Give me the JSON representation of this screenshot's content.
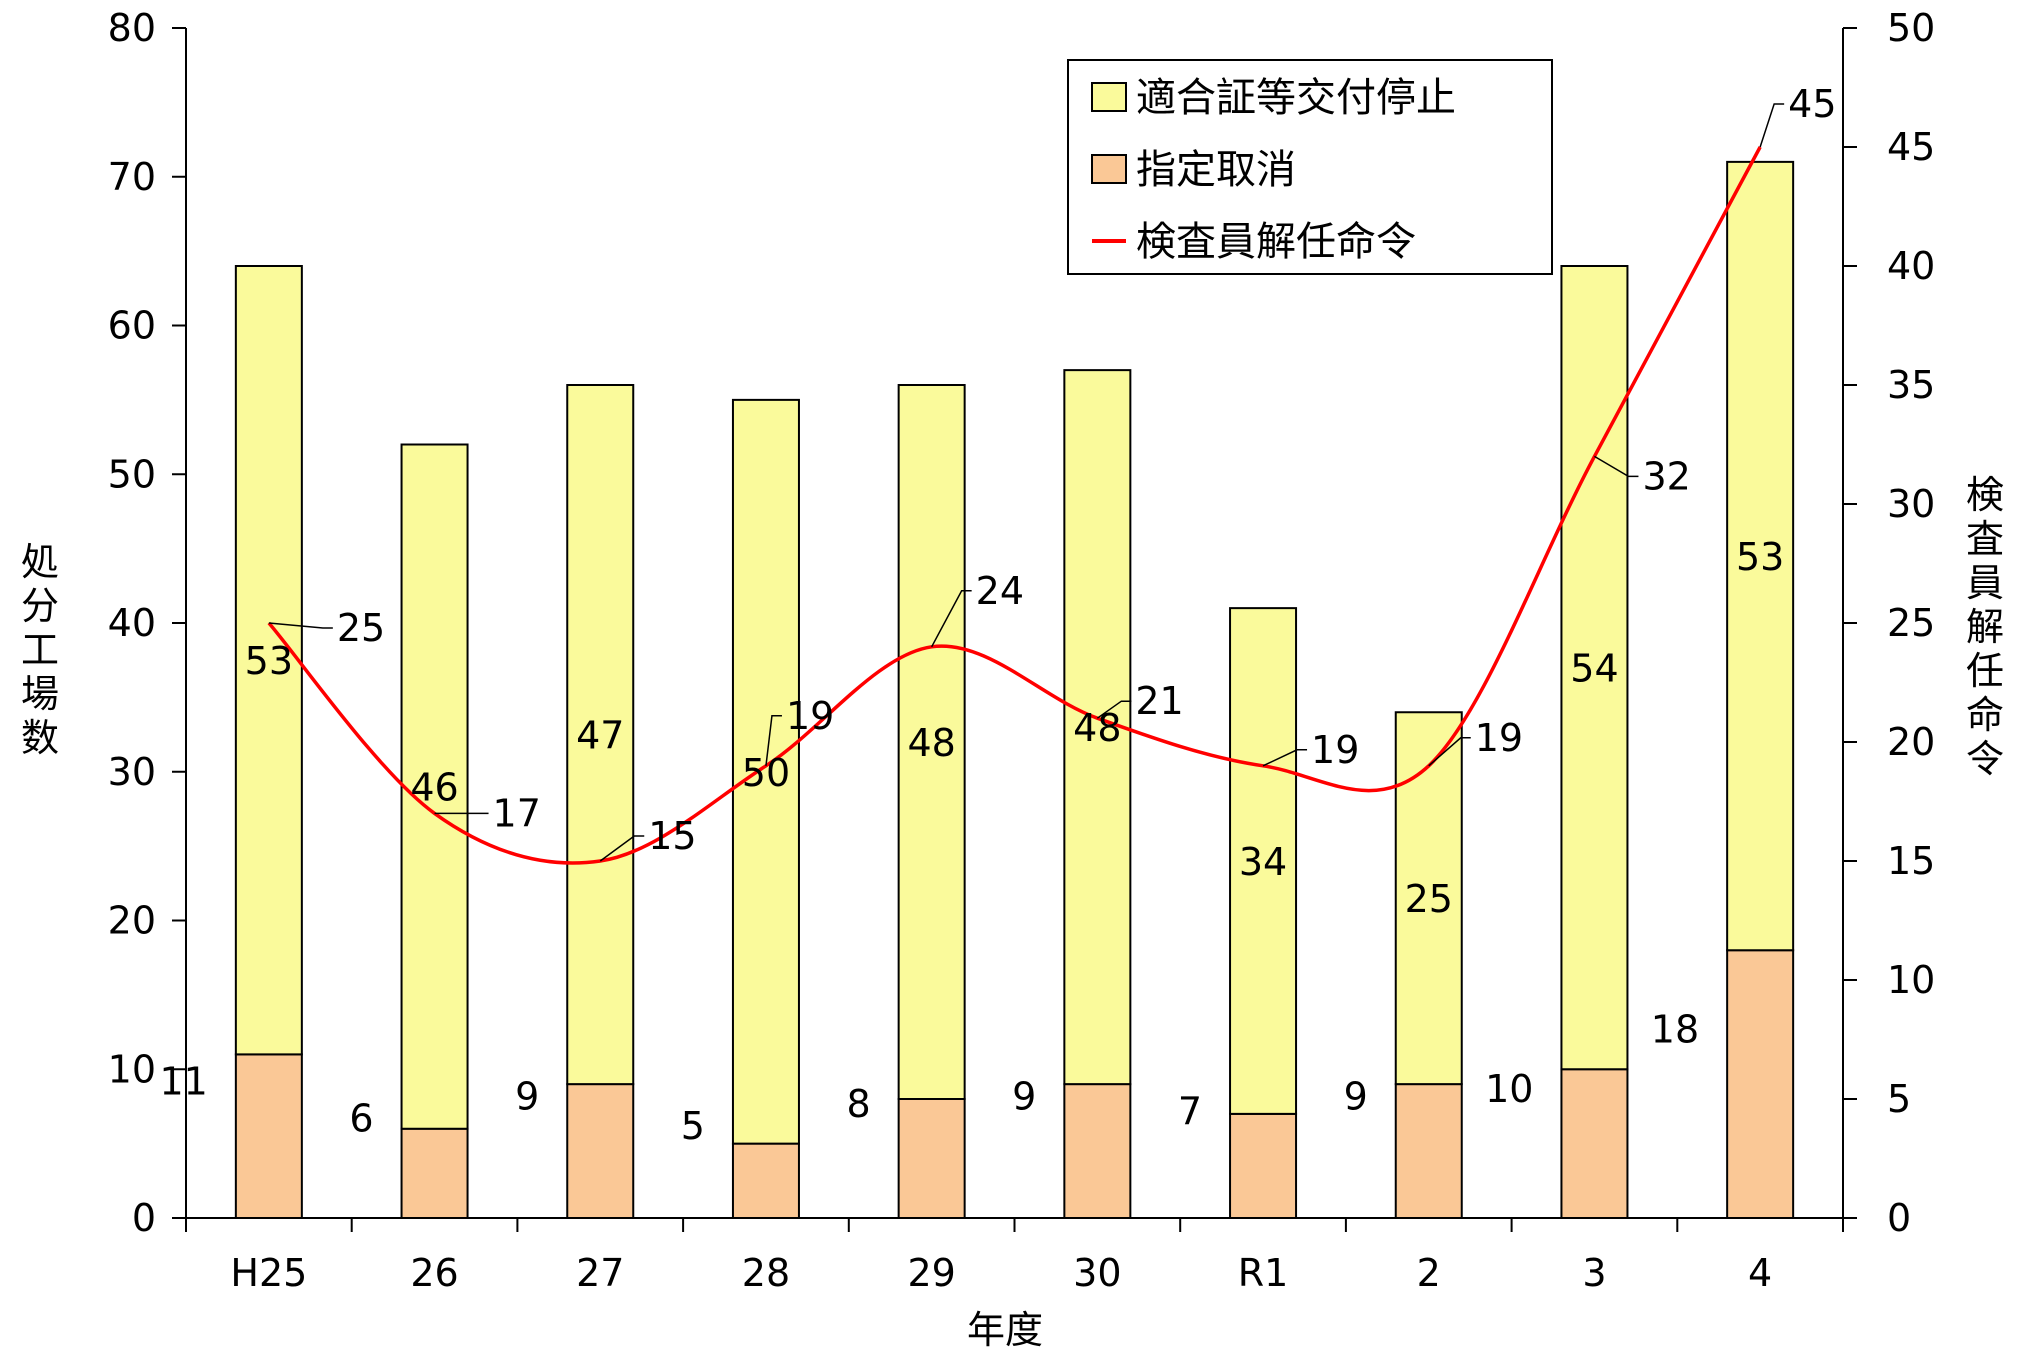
{
  "chart_data": {
    "type": "bar",
    "stacked": true,
    "categories": [
      "H25",
      "26",
      "27",
      "28",
      "29",
      "30",
      "R1",
      "2",
      "3",
      "4"
    ],
    "series": [
      {
        "name": "指定取消",
        "axis": "left",
        "color": "#FAC896",
        "values": [
          11,
          6,
          9,
          5,
          8,
          9,
          7,
          9,
          10,
          18
        ]
      },
      {
        "name": "適合証等交付停止",
        "axis": "left",
        "color": "#FAFA9B",
        "values": [
          53,
          46,
          47,
          50,
          48,
          48,
          34,
          25,
          54,
          53
        ]
      },
      {
        "name": "検査員解任命令",
        "type": "line",
        "axis": "right",
        "color": "#FF0000",
        "values": [
          25,
          17,
          15,
          19,
          24,
          21,
          19,
          19,
          32,
          45
        ]
      }
    ],
    "xlabel": "年度",
    "ylabel": "処分工場数",
    "y2label": "検査員解任命令",
    "ylim": [
      0,
      80
    ],
    "y2lim": [
      0,
      50
    ],
    "yticks": [
      "0",
      "10",
      "20",
      "30",
      "40",
      "50",
      "60",
      "70",
      "80"
    ],
    "y2ticks": [
      "0",
      "5",
      "10",
      "15",
      "20",
      "25",
      "30",
      "35",
      "40",
      "45",
      "50"
    ],
    "grid": false,
    "legend": "top-right",
    "legend_order": [
      "適合証等交付停止",
      "指定取消",
      "検査員解任命令"
    ]
  }
}
